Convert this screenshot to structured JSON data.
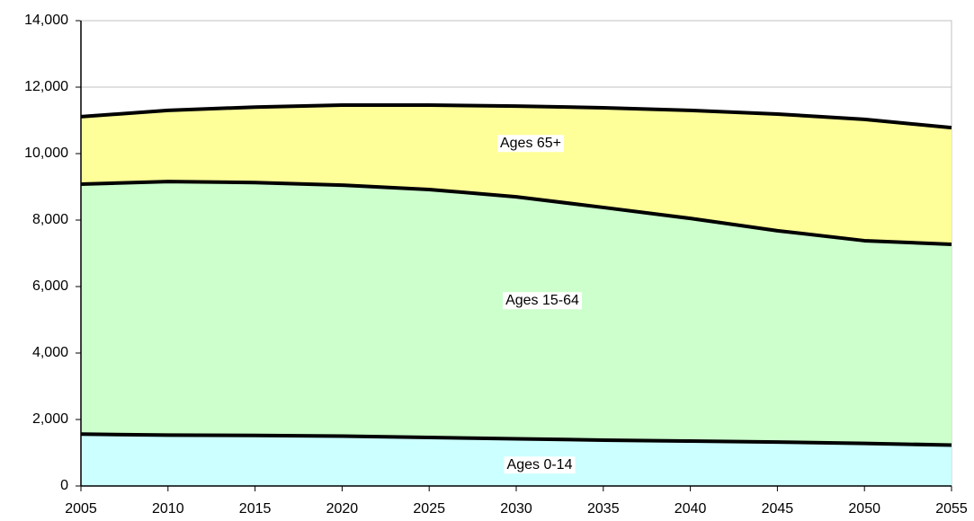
{
  "chart_data": {
    "type": "stacked_area",
    "x": [
      2005,
      2010,
      2015,
      2020,
      2025,
      2030,
      2035,
      2040,
      2045,
      2050,
      2055
    ],
    "series": [
      {
        "name": "Ages 0-14",
        "color": "#ccffff",
        "values": [
          1560,
          1530,
          1520,
          1500,
          1460,
          1420,
          1380,
          1350,
          1320,
          1280,
          1230
        ]
      },
      {
        "name": "Ages 15-64",
        "color": "#ccffcc",
        "values": [
          7520,
          7630,
          7610,
          7550,
          7460,
          7280,
          7000,
          6700,
          6360,
          6100,
          6040
        ]
      },
      {
        "name": "Ages 65+",
        "color": "#ffff99",
        "values": [
          2030,
          2140,
          2270,
          2410,
          2540,
          2730,
          3000,
          3250,
          3510,
          3650,
          3510
        ]
      }
    ],
    "xlim": [
      2005,
      2055
    ],
    "xticks": [
      2005,
      2010,
      2015,
      2020,
      2025,
      2030,
      2035,
      2040,
      2045,
      2050,
      2055
    ],
    "ylim": [
      0,
      14000
    ],
    "yticks": [
      0,
      {
        "value": 2000,
        "label": "2,000"
      },
      {
        "value": 4000,
        "label": "4,000"
      },
      {
        "value": 6000,
        "label": "6,000"
      },
      {
        "value": 8000,
        "label": "8,000"
      },
      {
        "value": 10000,
        "label": "10,000"
      },
      {
        "value": 12000,
        "label": "12,000"
      },
      {
        "value": 14000,
        "label": "14,000"
      }
    ],
    "grid": true
  }
}
